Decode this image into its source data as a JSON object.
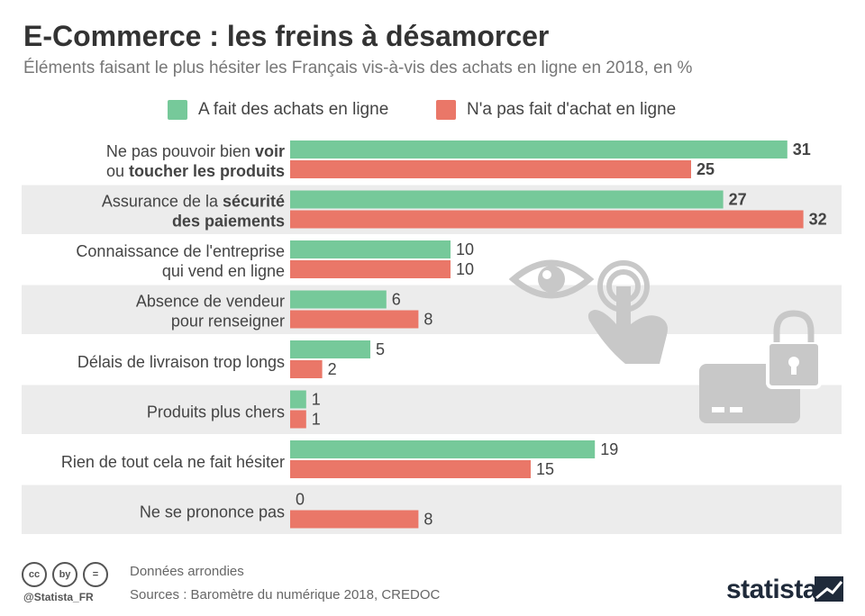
{
  "title": "E-Commerce : les freins à désamorcer",
  "subtitle": "Éléments faisant le plus hésiter les Français vis-à-vis des achats en ligne en 2018, en %",
  "colors": {
    "green": "#76c99a",
    "red": "#ea7768",
    "band": "#ececec",
    "icon": "#c8c8c8"
  },
  "chart_data": {
    "type": "bar",
    "orientation": "horizontal",
    "categories": [
      [
        "Ne pas pouvoir bien ",
        "voir",
        "|ou ",
        "toucher les produits"
      ],
      [
        "Assurance de la ",
        "sécurité",
        "|",
        "des paiements"
      ],
      [
        "Connaissance de l'entreprise",
        "",
        "|qui vend en ligne",
        ""
      ],
      [
        "Absence de vendeur",
        "",
        "|pour renseigner",
        ""
      ],
      [
        "Délais de livraison trop longs",
        "",
        "",
        ""
      ],
      [
        "Produits plus chers",
        "",
        "",
        ""
      ],
      [
        "Rien de tout cela ne fait hésiter",
        "",
        "",
        ""
      ],
      [
        "Ne se prononce pas",
        "",
        "",
        ""
      ]
    ],
    "series": [
      {
        "name": "A fait des achats en ligne",
        "color": "#76c99a",
        "values": [
          31,
          27,
          10,
          6,
          5,
          1,
          19,
          0
        ]
      },
      {
        "name": "N'a pas fait d'achat en ligne",
        "color": "#ea7768",
        "values": [
          25,
          32,
          10,
          8,
          2,
          1,
          15,
          8
        ]
      }
    ],
    "xlim": [
      0,
      33
    ],
    "legend_position": "top"
  },
  "footer": {
    "note": "Données arrondies",
    "source": "Sources : Baromètre du numérique 2018, CREDOC",
    "handle": "@Statista_FR",
    "logo": "statista",
    "cc_icons": [
      "cc",
      "by",
      "="
    ]
  }
}
